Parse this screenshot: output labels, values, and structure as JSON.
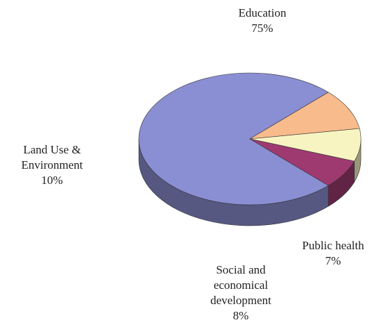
{
  "chart_data": {
    "type": "pie3d",
    "categories": [
      "Education",
      "Land Use & Environment",
      "Social and economical development",
      "Public health"
    ],
    "values": [
      75,
      10,
      8,
      7
    ],
    "value_labels": [
      "75%",
      "10%",
      "8%",
      "7%"
    ],
    "colors": [
      "#8a8ed2",
      "#f8bb8c",
      "#f7f4c2",
      "#9e3a70"
    ]
  }
}
